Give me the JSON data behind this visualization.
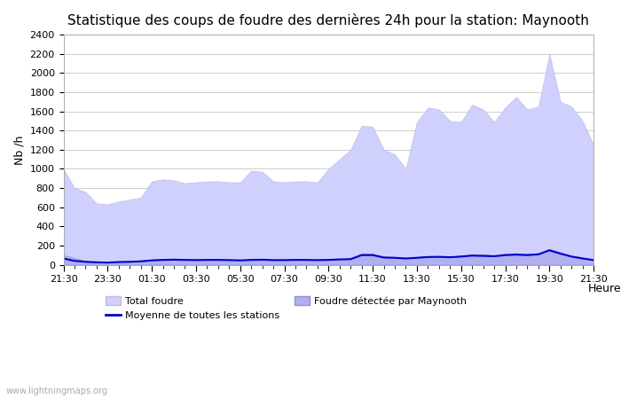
{
  "title": "Statistique des coups de foudre des dernières 24h pour la station: Maynooth",
  "xlabel": "Heure",
  "ylabel": "Nb /h",
  "xlim": [
    0,
    48
  ],
  "ylim": [
    0,
    2400
  ],
  "yticks": [
    0,
    200,
    400,
    600,
    800,
    1000,
    1200,
    1400,
    1600,
    1800,
    2000,
    2200,
    2400
  ],
  "xtick_labels": [
    "21:30",
    "23:30",
    "01:30",
    "03:30",
    "05:30",
    "07:30",
    "09:30",
    "11:30",
    "13:30",
    "15:30",
    "17:30",
    "19:30",
    "21:30"
  ],
  "xtick_positions": [
    0,
    4,
    8,
    12,
    16,
    20,
    24,
    28,
    32,
    36,
    40,
    44,
    48
  ],
  "background_color": "#ffffff",
  "plot_bg_color": "#ffffff",
  "grid_color": "#cccccc",
  "title_fontsize": 11,
  "watermark": "www.lightningmaps.org",
  "total_foudre_color": "#d0d0ff",
  "total_foudre_edge": "#c0c0e0",
  "maynooth_color": "#b0b0f0",
  "maynooth_edge": "#9090d0",
  "mean_line_color": "#0000cc",
  "total_foudre": [
    1000,
    800,
    760,
    640,
    630,
    660,
    680,
    700,
    870,
    890,
    880,
    850,
    860,
    870,
    870,
    860,
    860,
    980,
    970,
    870,
    860,
    870,
    870,
    860,
    1000,
    1100,
    1200,
    1450,
    1440,
    1200,
    1150,
    1000,
    1490,
    1640,
    1620,
    1500,
    1490,
    1670,
    1620,
    1490,
    1640,
    1750,
    1620,
    1650,
    2200,
    1700,
    1650,
    1500,
    1250
  ],
  "maynooth_detected": [
    100,
    70,
    40,
    30,
    25,
    30,
    35,
    40,
    55,
    60,
    65,
    60,
    55,
    60,
    60,
    55,
    50,
    55,
    55,
    50,
    50,
    55,
    55,
    50,
    55,
    60,
    65,
    120,
    115,
    85,
    80,
    70,
    80,
    90,
    90,
    85,
    95,
    110,
    105,
    100,
    115,
    120,
    115,
    120,
    165,
    130,
    95,
    75,
    55
  ],
  "mean_line": [
    65,
    40,
    30,
    25,
    22,
    28,
    30,
    35,
    45,
    50,
    52,
    50,
    48,
    50,
    50,
    48,
    45,
    50,
    52,
    48,
    48,
    50,
    50,
    48,
    50,
    55,
    58,
    100,
    100,
    75,
    72,
    65,
    72,
    80,
    82,
    78,
    85,
    95,
    92,
    88,
    100,
    105,
    100,
    108,
    150,
    115,
    85,
    65,
    48
  ]
}
